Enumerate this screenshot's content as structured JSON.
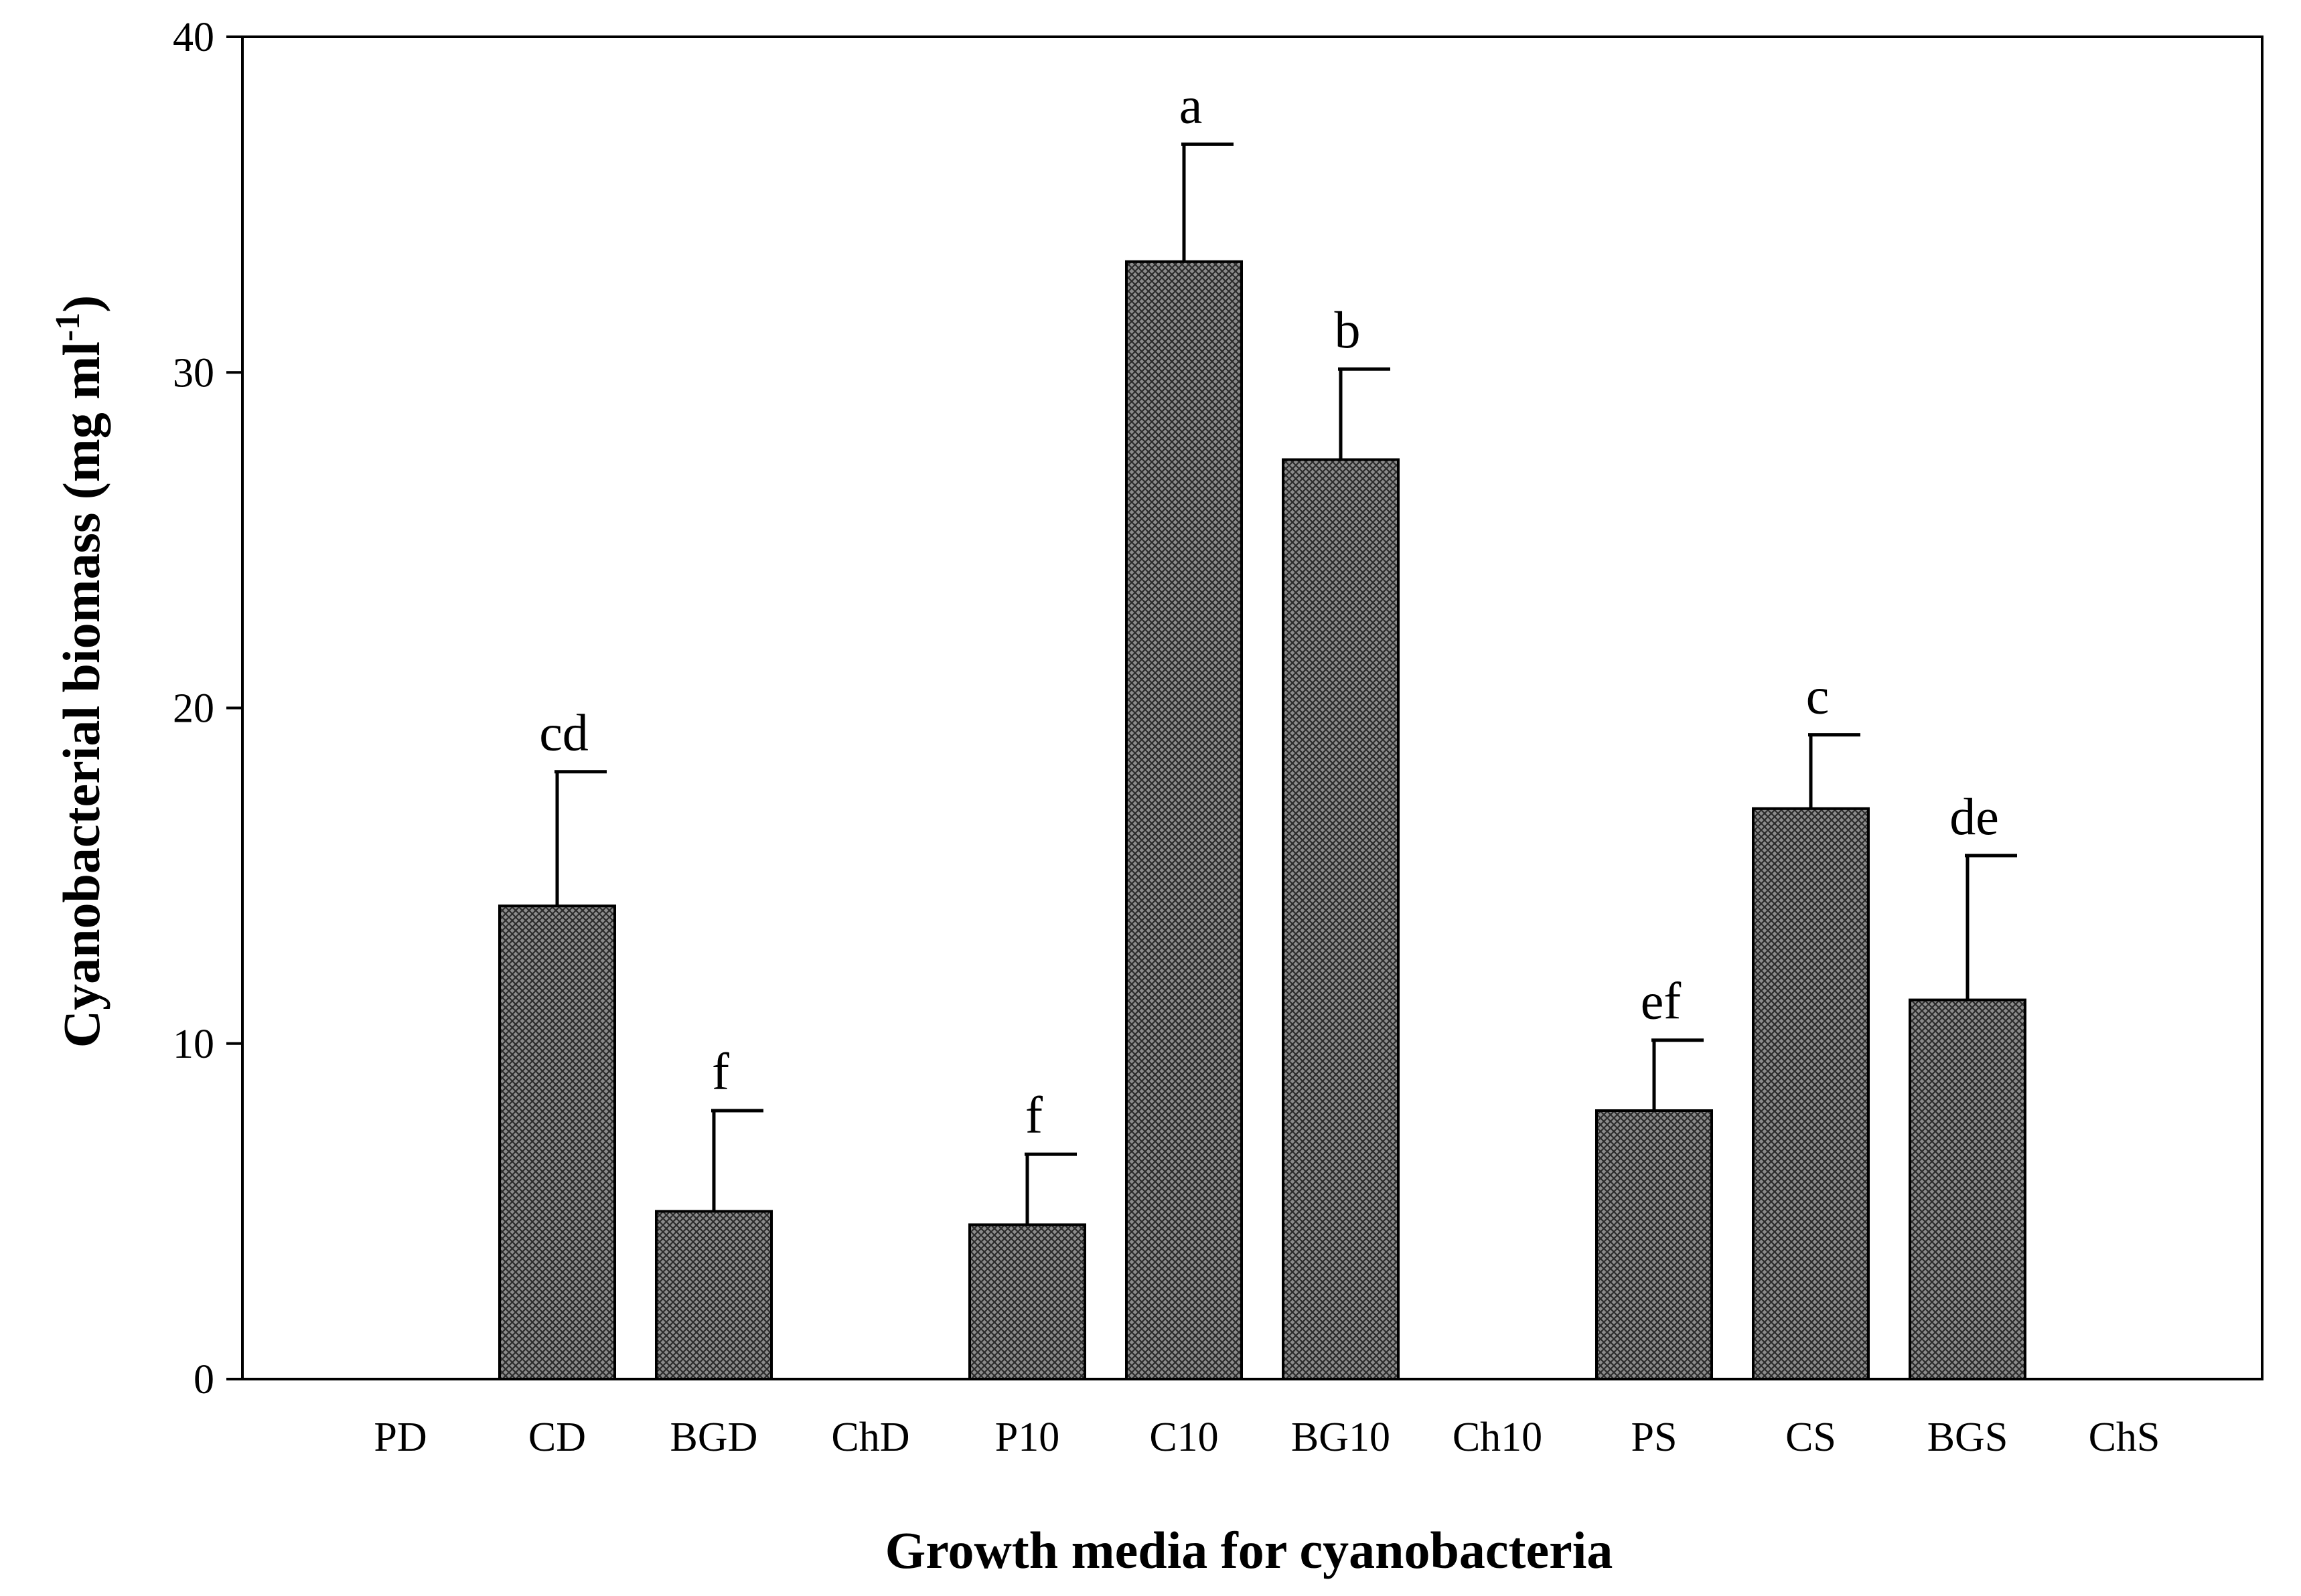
{
  "chart_data": {
    "type": "bar",
    "title": "",
    "xlabel": "Growth media for cyanobacteria",
    "ylabel": {
      "text": "Cyanobacterial biomass (mg ml",
      "superscript": "-1",
      "close": ")"
    },
    "ylim": [
      0,
      40
    ],
    "yticks": [
      0,
      10,
      20,
      30,
      40
    ],
    "grid": false,
    "bar_fill": "crosshatch-gray",
    "colors": {
      "bar_fill": "#8c8c8c",
      "hatch": "#222222",
      "stroke": "#000000"
    },
    "categories": [
      "PD",
      "CD",
      "BGD",
      "ChD",
      "P10",
      "C10",
      "BG10",
      "Ch10",
      "PS",
      "CS",
      "BGS",
      "ChS"
    ],
    "values": [
      0,
      14.1,
      5.0,
      0,
      4.6,
      33.3,
      27.4,
      0,
      8.0,
      17.0,
      11.3,
      0
    ],
    "errors": [
      0,
      4.0,
      3.0,
      0,
      2.1,
      3.5,
      2.7,
      0,
      2.1,
      2.2,
      4.3,
      0
    ],
    "significance": [
      "",
      "cd",
      "f",
      "",
      "f",
      "a",
      "b",
      "",
      "ef",
      "c",
      "de",
      ""
    ]
  }
}
